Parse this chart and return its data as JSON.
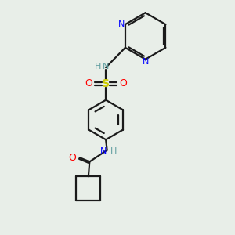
{
  "bg_color": "#e8eee8",
  "bond_color": "#1a1a1a",
  "N_color": "#0000ff",
  "O_color": "#ff0000",
  "S_color": "#cccc00",
  "H_color": "#5f9ea0",
  "figsize": [
    3.0,
    3.0
  ],
  "dpi": 100,
  "xlim": [
    0,
    10
  ],
  "ylim": [
    0,
    10
  ]
}
